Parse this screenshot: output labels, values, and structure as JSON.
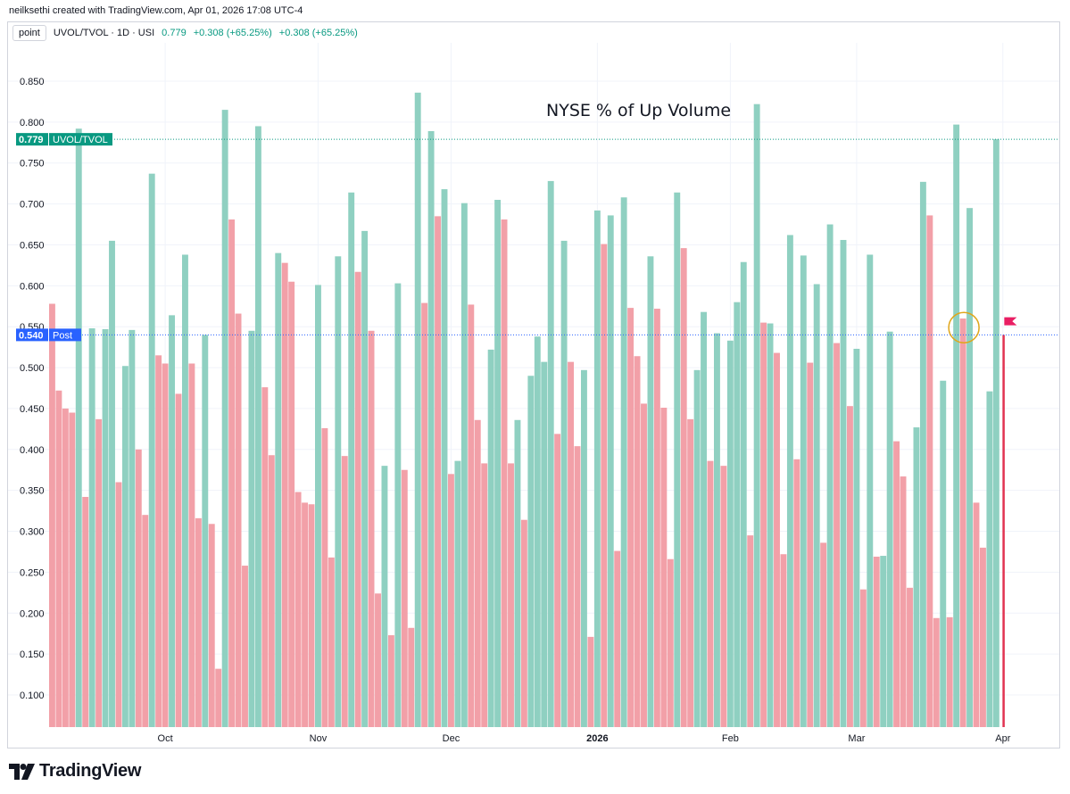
{
  "credit": "neilksethi created with TradingView.com, Apr 01, 2026 17:08 UTC-4",
  "header": {
    "interval_button": "point",
    "symbol": "UVOL/TVOL · 1D · USI",
    "value": "0.779",
    "change1": "+0.308 (+65.25%)",
    "change2": "+0.308 (+65.25%)"
  },
  "colors": {
    "up": "#8fd0c1",
    "down": "#f2a0a8",
    "label_green": "#089981",
    "label_blue": "#2962ff",
    "last_bar": "#e23352",
    "flag": "#e91e63",
    "circle": "#e0a61a"
  },
  "logo": {
    "text": "TradingView"
  },
  "chart_data": {
    "type": "bar",
    "title": "NYSE % of Up Volume",
    "ylim": [
      0.065,
      0.9
    ],
    "yticks": [
      0.1,
      0.15,
      0.2,
      0.25,
      0.3,
      0.35,
      0.4,
      0.45,
      0.5,
      0.55,
      0.6,
      0.65,
      0.7,
      0.75,
      0.8,
      0.85
    ],
    "ytick_labels": [
      "0.100",
      "0.150",
      "0.200",
      "0.250",
      "0.300",
      "0.350",
      "0.400",
      "0.450",
      "0.500",
      "0.550",
      "0.600",
      "0.650",
      "0.700",
      "0.750",
      "0.800",
      "0.850"
    ],
    "xticks": [
      {
        "label": "Oct",
        "index": 17
      },
      {
        "label": "Nov",
        "index": 40
      },
      {
        "label": "Dec",
        "index": 60
      },
      {
        "label": "2026",
        "index": 82
      },
      {
        "label": "Feb",
        "index": 102
      },
      {
        "label": "Mar",
        "index": 121
      },
      {
        "label": "Apr",
        "index": 143
      }
    ],
    "bars": [
      [
        0.578,
        "d"
      ],
      [
        0.472,
        "d"
      ],
      [
        0.45,
        "d"
      ],
      [
        0.445,
        "d"
      ],
      [
        0.792,
        "u"
      ],
      [
        0.342,
        "d"
      ],
      [
        0.548,
        "u"
      ],
      [
        0.437,
        "d"
      ],
      [
        0.547,
        "u"
      ],
      [
        0.655,
        "u"
      ],
      [
        0.36,
        "d"
      ],
      [
        0.502,
        "u"
      ],
      [
        0.546,
        "u"
      ],
      [
        0.4,
        "d"
      ],
      [
        0.32,
        "d"
      ],
      [
        0.737,
        "u"
      ],
      [
        0.515,
        "d"
      ],
      [
        0.505,
        "d"
      ],
      [
        0.564,
        "u"
      ],
      [
        0.468,
        "d"
      ],
      [
        0.638,
        "u"
      ],
      [
        0.505,
        "d"
      ],
      [
        0.316,
        "d"
      ],
      [
        0.54,
        "u"
      ],
      [
        0.309,
        "d"
      ],
      [
        0.132,
        "d"
      ],
      [
        0.815,
        "u"
      ],
      [
        0.681,
        "d"
      ],
      [
        0.566,
        "d"
      ],
      [
        0.258,
        "d"
      ],
      [
        0.545,
        "u"
      ],
      [
        0.795,
        "u"
      ],
      [
        0.476,
        "d"
      ],
      [
        0.393,
        "d"
      ],
      [
        0.64,
        "u"
      ],
      [
        0.628,
        "d"
      ],
      [
        0.605,
        "d"
      ],
      [
        0.348,
        "d"
      ],
      [
        0.335,
        "d"
      ],
      [
        0.333,
        "d"
      ],
      [
        0.601,
        "u"
      ],
      [
        0.426,
        "d"
      ],
      [
        0.268,
        "d"
      ],
      [
        0.636,
        "u"
      ],
      [
        0.392,
        "d"
      ],
      [
        0.714,
        "u"
      ],
      [
        0.617,
        "d"
      ],
      [
        0.667,
        "u"
      ],
      [
        0.545,
        "d"
      ],
      [
        0.224,
        "d"
      ],
      [
        0.38,
        "u"
      ],
      [
        0.173,
        "d"
      ],
      [
        0.603,
        "u"
      ],
      [
        0.375,
        "d"
      ],
      [
        0.182,
        "d"
      ],
      [
        0.836,
        "u"
      ],
      [
        0.579,
        "d"
      ],
      [
        0.789,
        "u"
      ],
      [
        0.685,
        "d"
      ],
      [
        0.718,
        "u"
      ],
      [
        0.37,
        "d"
      ],
      [
        0.386,
        "u"
      ],
      [
        0.701,
        "u"
      ],
      [
        0.577,
        "d"
      ],
      [
        0.436,
        "d"
      ],
      [
        0.383,
        "d"
      ],
      [
        0.522,
        "u"
      ],
      [
        0.705,
        "u"
      ],
      [
        0.681,
        "d"
      ],
      [
        0.383,
        "d"
      ],
      [
        0.436,
        "u"
      ],
      [
        0.314,
        "d"
      ],
      [
        0.49,
        "u"
      ],
      [
        0.538,
        "u"
      ],
      [
        0.507,
        "u"
      ],
      [
        0.728,
        "u"
      ],
      [
        0.419,
        "d"
      ],
      [
        0.655,
        "u"
      ],
      [
        0.507,
        "d"
      ],
      [
        0.404,
        "d"
      ],
      [
        0.497,
        "u"
      ],
      [
        0.171,
        "d"
      ],
      [
        0.692,
        "u"
      ],
      [
        0.651,
        "d"
      ],
      [
        0.686,
        "u"
      ],
      [
        0.276,
        "d"
      ],
      [
        0.708,
        "u"
      ],
      [
        0.573,
        "d"
      ],
      [
        0.514,
        "d"
      ],
      [
        0.456,
        "d"
      ],
      [
        0.636,
        "u"
      ],
      [
        0.572,
        "d"
      ],
      [
        0.451,
        "d"
      ],
      [
        0.266,
        "d"
      ],
      [
        0.714,
        "u"
      ],
      [
        0.646,
        "d"
      ],
      [
        0.437,
        "d"
      ],
      [
        0.497,
        "u"
      ],
      [
        0.568,
        "u"
      ],
      [
        0.386,
        "d"
      ],
      [
        0.542,
        "u"
      ],
      [
        0.38,
        "d"
      ],
      [
        0.533,
        "u"
      ],
      [
        0.58,
        "u"
      ],
      [
        0.629,
        "u"
      ],
      [
        0.295,
        "d"
      ],
      [
        0.822,
        "u"
      ],
      [
        0.555,
        "d"
      ],
      [
        0.554,
        "u"
      ],
      [
        0.518,
        "d"
      ],
      [
        0.272,
        "d"
      ],
      [
        0.662,
        "u"
      ],
      [
        0.388,
        "d"
      ],
      [
        0.637,
        "u"
      ],
      [
        0.506,
        "d"
      ],
      [
        0.602,
        "u"
      ],
      [
        0.286,
        "d"
      ],
      [
        0.675,
        "u"
      ],
      [
        0.53,
        "d"
      ],
      [
        0.656,
        "u"
      ],
      [
        0.453,
        "d"
      ],
      [
        0.523,
        "u"
      ],
      [
        0.229,
        "d"
      ],
      [
        0.638,
        "u"
      ],
      [
        0.269,
        "d"
      ],
      [
        0.27,
        "u"
      ],
      [
        0.544,
        "u"
      ],
      [
        0.41,
        "d"
      ],
      [
        0.367,
        "d"
      ],
      [
        0.231,
        "d"
      ],
      [
        0.427,
        "u"
      ],
      [
        0.727,
        "u"
      ],
      [
        0.686,
        "d"
      ],
      [
        0.194,
        "d"
      ],
      [
        0.484,
        "u"
      ],
      [
        0.195,
        "d"
      ],
      [
        0.797,
        "u"
      ],
      [
        0.56,
        "d"
      ],
      [
        0.695,
        "u"
      ],
      [
        0.335,
        "d"
      ],
      [
        0.28,
        "d"
      ],
      [
        0.471,
        "u"
      ],
      [
        0.779,
        "u"
      ]
    ],
    "lines": [
      {
        "value": 0.779,
        "label_value": "0.779",
        "label_text": "UVOL/TVOL",
        "color": "green"
      },
      {
        "value": 0.54,
        "label_value": "0.540",
        "label_text": "Post",
        "color": "blue"
      }
    ],
    "last_bar_value": 0.54,
    "annotation": {
      "type": "circle",
      "bar_index": 137
    }
  }
}
